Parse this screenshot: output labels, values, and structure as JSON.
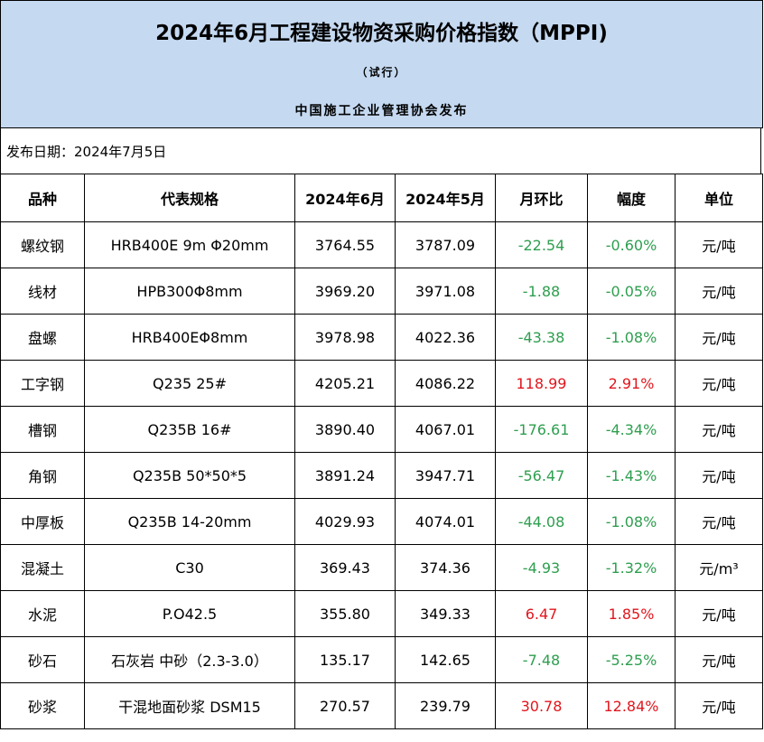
{
  "title": "2024年6月工程建设物资采购价格指数（MPPI)",
  "subtitle": "（试行）",
  "issuer": "中国施工企业管理协会发布",
  "release_date": "发布日期：2024年7月5日",
  "columns": [
    "品种",
    "代表规格",
    "2024年6月",
    "2024年5月",
    "月环比",
    "幅度",
    "单位"
  ],
  "colors": {
    "header_bg": "#c5d9f1",
    "negative": "#2e9e4f",
    "positive": "#e0161d"
  },
  "rows": [
    {
      "name": "螺纹钢",
      "spec": "HRB400E 9m Φ20mm",
      "jun": "3764.55",
      "may": "3787.09",
      "mom": "-22.54",
      "pct": "-0.60%",
      "unit": "元/吨",
      "dir": "neg"
    },
    {
      "name": "线材",
      "spec": "HPB300Φ8mm",
      "jun": "3969.20",
      "may": "3971.08",
      "mom": "-1.88",
      "pct": "-0.05%",
      "unit": "元/吨",
      "dir": "neg"
    },
    {
      "name": "盘螺",
      "spec": "HRB400EΦ8mm",
      "jun": "3978.98",
      "may": "4022.36",
      "mom": "-43.38",
      "pct": "-1.08%",
      "unit": "元/吨",
      "dir": "neg"
    },
    {
      "name": "工字钢",
      "spec": "Q235 25#",
      "jun": "4205.21",
      "may": "4086.22",
      "mom": "118.99",
      "pct": "2.91%",
      "unit": "元/吨",
      "dir": "pos"
    },
    {
      "name": "槽钢",
      "spec": "Q235B 16#",
      "jun": "3890.40",
      "may": "4067.01",
      "mom": "-176.61",
      "pct": "-4.34%",
      "unit": "元/吨",
      "dir": "neg"
    },
    {
      "name": "角钢",
      "spec": "Q235B 50*50*5",
      "jun": "3891.24",
      "may": "3947.71",
      "mom": "-56.47",
      "pct": "-1.43%",
      "unit": "元/吨",
      "dir": "neg"
    },
    {
      "name": "中厚板",
      "spec": "Q235B 14-20mm",
      "jun": "4029.93",
      "may": "4074.01",
      "mom": "-44.08",
      "pct": "-1.08%",
      "unit": "元/吨",
      "dir": "neg"
    },
    {
      "name": "混凝土",
      "spec": "C30",
      "jun": "369.43",
      "may": "374.36",
      "mom": "-4.93",
      "pct": "-1.32%",
      "unit": "元/m³",
      "dir": "neg"
    },
    {
      "name": "水泥",
      "spec": "P.O42.5",
      "jun": "355.80",
      "may": "349.33",
      "mom": "6.47",
      "pct": "1.85%",
      "unit": "元/吨",
      "dir": "pos"
    },
    {
      "name": "砂石",
      "spec": "石灰岩 中砂（2.3-3.0）",
      "jun": "135.17",
      "may": "142.65",
      "mom": "-7.48",
      "pct": "-5.25%",
      "unit": "元/吨",
      "dir": "neg"
    },
    {
      "name": "砂浆",
      "spec": "干混地面砂浆 DSM15",
      "jun": "270.57",
      "may": "239.79",
      "mom": "30.78",
      "pct": "12.84%",
      "unit": "元/吨",
      "dir": "pos"
    }
  ]
}
